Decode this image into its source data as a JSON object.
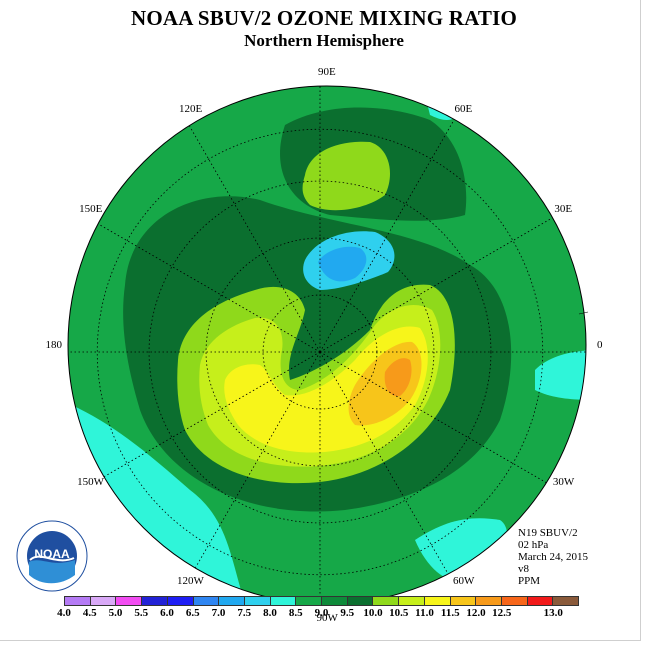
{
  "title": "NOAA SBUV/2 OZONE MIXING RATIO",
  "subtitle": "Northern Hemisphere",
  "longitude_labels": [
    {
      "text": "90E",
      "lon": 90
    },
    {
      "text": "120E",
      "lon": 120
    },
    {
      "text": "60E",
      "lon": 60
    },
    {
      "text": "150E",
      "lon": 150
    },
    {
      "text": "30E",
      "lon": 30
    },
    {
      "text": "180",
      "lon": 180
    },
    {
      "text": "0",
      "lon": 0
    },
    {
      "text": "150W",
      "lon": -150
    },
    {
      "text": "30W",
      "lon": -30
    },
    {
      "text": "120W",
      "lon": -120
    },
    {
      "text": "60W",
      "lon": -60
    },
    {
      "text": "90W",
      "lon": -90
    }
  ],
  "info": {
    "satellite": "N19 SBUV/2",
    "level": "02 hPa",
    "date": "March 24, 2015",
    "version": "v8",
    "units": "PPM"
  },
  "logo_text": "NOAA",
  "colorbar": {
    "labels": [
      "4.0",
      "4.5",
      "5.0",
      "5.5",
      "6.0",
      "6.5",
      "7.0",
      "7.5",
      "8.0",
      "8.5",
      "9.0",
      "9.5",
      "10.0",
      "10.5",
      "11.0",
      "11.5",
      "12.0",
      "12.5",
      "13.0"
    ],
    "colors": [
      "#b57bf5",
      "#d9a9f7",
      "#f24cf2",
      "#2222d6",
      "#1e1ef5",
      "#2f86f2",
      "#21a9f0",
      "#2fd0ee",
      "#2ff5d9",
      "#16a848",
      "#0e8a3a",
      "#0b6f2f",
      "#8fd91b",
      "#c6ef1b",
      "#f7f51a",
      "#f7c51a",
      "#f79a1a",
      "#f7661a",
      "#f21a1a",
      "#8a5a3a"
    ]
  },
  "field_colors": {
    "c_80": "#2ff5d9",
    "c_85": "#16a848",
    "c_90": "#0b6f2f",
    "c_95": "#8fd91b",
    "c_100": "#c6ef1b",
    "c_105": "#f7f51a",
    "c_110": "#f7c51a",
    "c_115": "#f79a1a",
    "c_75": "#2fd0ee",
    "c_70": "#21a9f0"
  }
}
